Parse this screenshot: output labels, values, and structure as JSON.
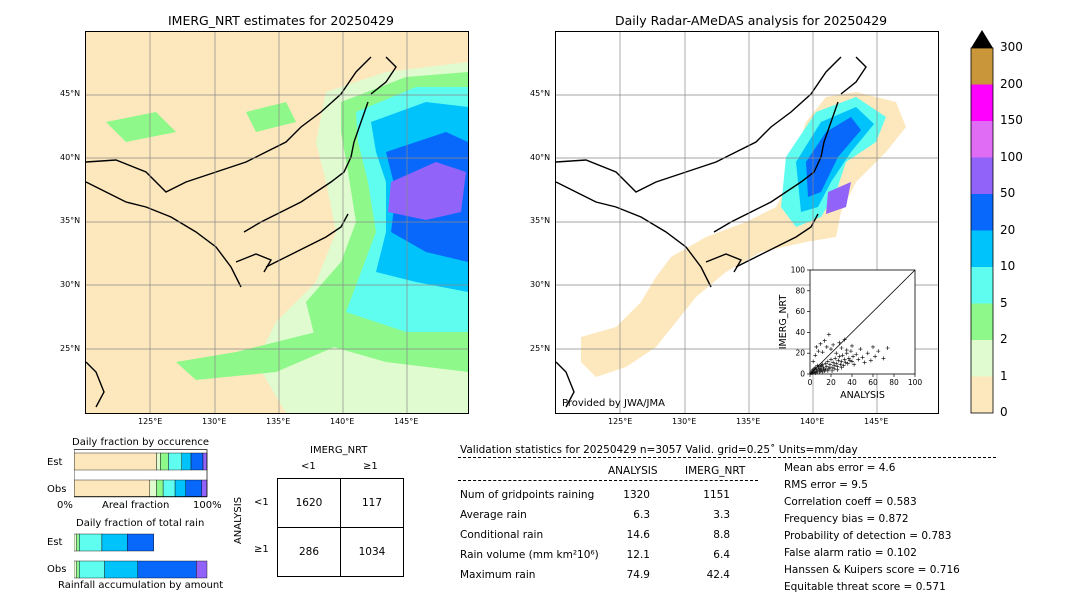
{
  "left_map": {
    "title": "IMERG_NRT estimates for 20250429",
    "lat_labels": [
      "45°N",
      "40°N",
      "35°N",
      "30°N",
      "25°N"
    ],
    "lon_labels": [
      "125°E",
      "130°E",
      "135°E",
      "140°E",
      "145°E"
    ]
  },
  "right_map": {
    "title": "Daily Radar-AMeDAS analysis for 20250429",
    "credit": "Provided by JWA/JMA",
    "lat_labels": [
      "45°N",
      "40°N",
      "35°N",
      "30°N",
      "25°N"
    ],
    "lon_labels": [
      "125°E",
      "130°E",
      "135°E",
      "140°E",
      "145°E"
    ]
  },
  "colorbar": {
    "ticks": [
      "0",
      "1",
      "2",
      "5",
      "10",
      "20",
      "50",
      "100",
      "150",
      "200",
      "300"
    ],
    "colors": [
      "#fde8bd",
      "#e0fbcf",
      "#8ef98a",
      "#5ffcf0",
      "#00c3fb",
      "#0868fb",
      "#9263f8",
      "#e06bf5",
      "#ff00ff",
      "#c9963a"
    ],
    "extend_color": "#000000"
  },
  "occurrence": {
    "title": "Daily fraction by occurence",
    "rows": [
      "Est",
      "Obs"
    ],
    "axis_left": "0%",
    "axis_mid": "Areal fraction",
    "axis_right": "100%"
  },
  "total_rain": {
    "title": "Daily fraction of total rain",
    "rows": [
      "Est",
      "Obs"
    ],
    "caption": "Rainfall accumulation by amount"
  },
  "contingency": {
    "title": "IMERG_NRT",
    "col_headers": [
      "<1",
      "≥1"
    ],
    "row_axis": "ANALYSIS",
    "row_headers": [
      "<1",
      "≥1"
    ],
    "cells": [
      [
        "1620",
        "117"
      ],
      [
        "286",
        "1034"
      ]
    ]
  },
  "validation": {
    "header": "Validation statistics for 20250429  n=3057 Valid. grid=0.25˚ Units=mm/day",
    "col_analysis": "ANALYSIS",
    "col_imerg": "IMERG_NRT",
    "rows": [
      {
        "label": "Num of gridpoints raining",
        "analysis": "1320",
        "imerg": "1151"
      },
      {
        "label": "Average rain",
        "analysis": "6.3",
        "imerg": "3.3"
      },
      {
        "label": "Conditional rain",
        "analysis": "14.6",
        "imerg": "8.8"
      },
      {
        "label": "Rain volume (mm km²10⁶)",
        "analysis": "12.1",
        "imerg": "6.4"
      },
      {
        "label": "Maximum rain",
        "analysis": "74.9",
        "imerg": "42.4"
      }
    ],
    "scores": [
      "Mean abs error =    4.6",
      "RMS error =    9.5",
      "Correlation coeff =  0.583",
      "Frequency bias =  0.872",
      "Probability of detection =  0.783",
      "False alarm ratio =  0.102",
      "Hanssen & Kuipers score =  0.716",
      "Equitable threat score =  0.571"
    ]
  },
  "chart_data": [
    {
      "type": "scatter",
      "xlabel": "ANALYSIS",
      "ylabel": "IMERG_NRT",
      "xlim": [
        0,
        100
      ],
      "ylim": [
        0,
        100
      ],
      "xticks": [
        "0",
        "20",
        "40",
        "60",
        "80",
        "100"
      ],
      "yticks": [
        "0",
        "20",
        "40",
        "60",
        "80",
        "100"
      ],
      "points": [
        [
          2,
          1
        ],
        [
          3,
          4
        ],
        [
          4,
          2
        ],
        [
          5,
          6
        ],
        [
          6,
          3
        ],
        [
          7,
          8
        ],
        [
          8,
          5
        ],
        [
          9,
          2
        ],
        [
          10,
          7
        ],
        [
          11,
          4
        ],
        [
          12,
          9
        ],
        [
          13,
          6
        ],
        [
          14,
          3
        ],
        [
          15,
          10
        ],
        [
          16,
          7
        ],
        [
          17,
          12
        ],
        [
          18,
          5
        ],
        [
          19,
          9
        ],
        [
          20,
          14
        ],
        [
          21,
          6
        ],
        [
          22,
          11
        ],
        [
          23,
          8
        ],
        [
          24,
          15
        ],
        [
          25,
          10
        ],
        [
          26,
          7
        ],
        [
          27,
          13
        ],
        [
          28,
          17
        ],
        [
          29,
          9
        ],
        [
          30,
          12
        ],
        [
          31,
          18
        ],
        [
          32,
          8
        ],
        [
          33,
          14
        ],
        [
          34,
          11
        ],
        [
          35,
          20
        ],
        [
          36,
          10
        ],
        [
          37,
          15
        ],
        [
          38,
          13
        ],
        [
          39,
          22
        ],
        [
          40,
          12
        ],
        [
          41,
          17
        ],
        [
          42,
          9
        ],
        [
          44,
          19
        ],
        [
          46,
          14
        ],
        [
          48,
          24
        ],
        [
          50,
          16
        ],
        [
          52,
          11
        ],
        [
          55,
          20
        ],
        [
          58,
          13
        ],
        [
          60,
          26
        ],
        [
          62,
          17
        ],
        [
          65,
          22
        ],
        [
          70,
          15
        ],
        [
          74,
          25
        ],
        [
          3,
          12
        ],
        [
          5,
          18
        ],
        [
          6,
          26
        ],
        [
          8,
          22
        ],
        [
          10,
          29
        ],
        [
          12,
          21
        ],
        [
          14,
          32
        ],
        [
          16,
          26
        ],
        [
          18,
          38
        ],
        [
          20,
          24
        ],
        [
          22,
          28
        ],
        [
          25,
          20
        ],
        [
          28,
          30
        ],
        [
          30,
          25
        ],
        [
          33,
          33
        ],
        [
          35,
          23
        ],
        [
          40,
          27
        ],
        [
          1,
          1
        ],
        [
          2,
          3
        ],
        [
          3,
          2
        ],
        [
          4,
          5
        ],
        [
          5,
          1
        ],
        [
          6,
          4
        ],
        [
          7,
          2
        ],
        [
          8,
          7
        ],
        [
          9,
          5
        ],
        [
          10,
          3
        ],
        [
          11,
          8
        ],
        [
          12,
          2
        ],
        [
          13,
          5
        ],
        [
          15,
          4
        ],
        [
          17,
          3
        ],
        [
          19,
          6
        ],
        [
          21,
          3
        ],
        [
          23,
          5
        ],
        [
          26,
          4
        ],
        [
          30,
          6
        ]
      ]
    },
    {
      "type": "bar",
      "title": "Daily fraction by occurence",
      "orientation": "horizontal",
      "stacked": true,
      "categories": [
        "Est",
        "Obs"
      ],
      "xlim": [
        0,
        100
      ],
      "series": [
        {
          "color": "#fde8bd",
          "values": [
            62,
            57
          ]
        },
        {
          "color": "#e0fbcf",
          "values": [
            3,
            5
          ]
        },
        {
          "color": "#8ef98a",
          "values": [
            6,
            5
          ]
        },
        {
          "color": "#5ffcf0",
          "values": [
            10,
            9
          ]
        },
        {
          "color": "#00c3fb",
          "values": [
            7,
            8
          ]
        },
        {
          "color": "#0868fb",
          "values": [
            9,
            12
          ]
        },
        {
          "color": "#9263f8",
          "values": [
            3,
            4
          ]
        }
      ]
    },
    {
      "type": "bar",
      "title": "Daily fraction of total rain",
      "orientation": "horizontal",
      "stacked": true,
      "categories": [
        "Est",
        "Obs"
      ],
      "xlim": [
        0,
        100
      ],
      "series": [
        {
          "color": "#e0fbcf",
          "values": [
            2,
            2
          ]
        },
        {
          "color": "#8ef98a",
          "values": [
            2,
            2
          ]
        },
        {
          "color": "#5ffcf0",
          "values": [
            17,
            19
          ]
        },
        {
          "color": "#00c3fb",
          "values": [
            19,
            25
          ]
        },
        {
          "color": "#0868fb",
          "values": [
            20,
            44
          ]
        },
        {
          "color": "#9263f8",
          "values": [
            0,
            8
          ]
        }
      ]
    }
  ]
}
